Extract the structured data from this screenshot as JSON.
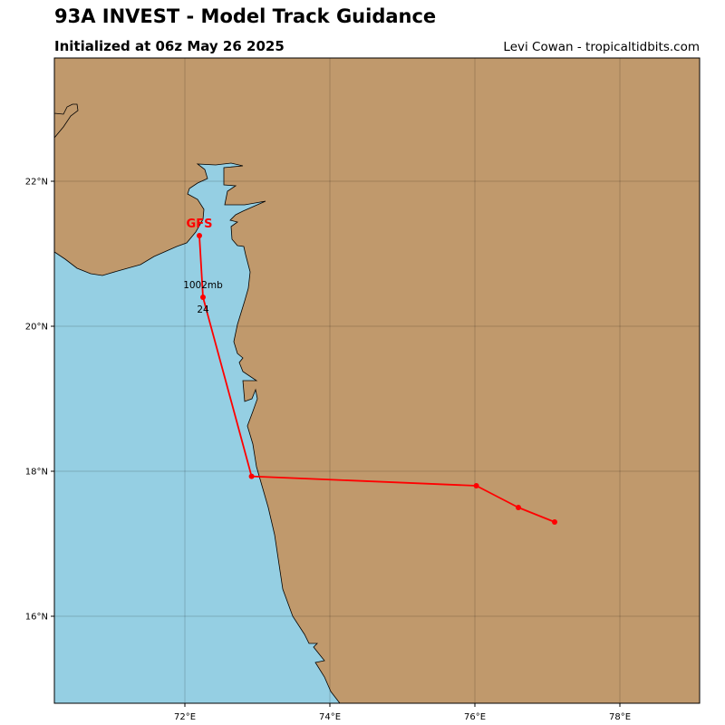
{
  "header": {
    "title": "93A INVEST - Model Track Guidance",
    "subtitle": "Initialized at 06z May 26 2025",
    "credit": "Levi Cowan - tropicaltidbits.com"
  },
  "map": {
    "lon_range": [
      70.2,
      79.1
    ],
    "lat_range": [
      14.8,
      23.7
    ],
    "lon_ticks": [
      {
        "value": 72,
        "label": "72°E"
      },
      {
        "value": 74,
        "label": "74°E"
      },
      {
        "value": 76,
        "label": "76°E"
      },
      {
        "value": 78,
        "label": "78°E"
      }
    ],
    "lat_ticks": [
      {
        "value": 22,
        "label": "22°N"
      },
      {
        "value": 20,
        "label": "20°N"
      },
      {
        "value": 18,
        "label": "18°N"
      },
      {
        "value": 16,
        "label": "16°N"
      }
    ],
    "colors": {
      "ocean": "#95cfe3",
      "land": "#c0996c",
      "track": "#ff0000",
      "grid": "#000000"
    }
  },
  "tracks": [
    {
      "name": "GFS",
      "points": [
        {
          "lon": 72.2,
          "lat": 21.25
        },
        {
          "lon": 72.25,
          "lat": 20.4,
          "hour": "24",
          "pressure": "1002mb"
        },
        {
          "lon": 72.92,
          "lat": 17.93
        },
        {
          "lon": 76.02,
          "lat": 17.8
        },
        {
          "lon": 76.6,
          "lat": 17.5
        },
        {
          "lon": 77.1,
          "lat": 17.3
        }
      ]
    }
  ]
}
